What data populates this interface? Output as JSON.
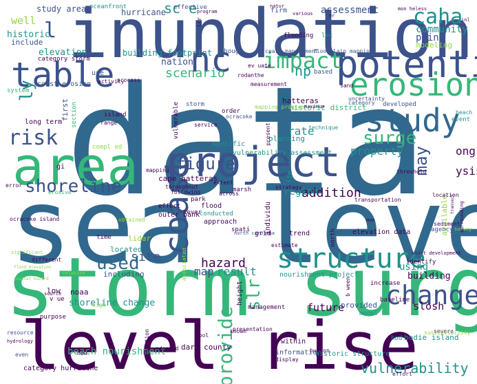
{
  "palette": {
    "purple": "#440154",
    "indigo": "#3b528b",
    "blue": "#31688e",
    "teal": "#21918c",
    "green": "#35b779",
    "lime": "#90d743",
    "yellow": "#d5e21a",
    "background": "#ffffff"
  },
  "words": [
    {
      "text": "data",
      "color": "purple"
    },
    {
      "text": "sea level",
      "color": "purple"
    },
    {
      "text": "inundation",
      "color": "purple"
    },
    {
      "text": "storm surge",
      "color": "purple"
    },
    {
      "text": "level rise",
      "color": "purple"
    },
    {
      "text": "area",
      "color": "purple"
    },
    {
      "text": "project",
      "color": "purple"
    },
    {
      "text": "potenti",
      "color": "purple"
    },
    {
      "text": "table",
      "color": "purple"
    },
    {
      "text": "nc",
      "color": "purple"
    },
    {
      "text": "erosion",
      "color": "purple"
    },
    {
      "text": "study",
      "color": "purple"
    },
    {
      "text": "coast",
      "color": "purple"
    },
    {
      "text": "structure",
      "color": "purple"
    },
    {
      "text": "change",
      "color": "purple"
    },
    {
      "text": "impact",
      "color": "purple"
    },
    {
      "text": "caha",
      "color": "purple"
    },
    {
      "text": "risk",
      "color": "purple"
    },
    {
      "text": "surge",
      "color": "purple"
    },
    {
      "text": "shoreline",
      "color": "purple"
    },
    {
      "text": "figure",
      "color": "purple"
    },
    {
      "text": "used",
      "color": "purple"
    },
    {
      "text": "provide",
      "color": "purple"
    },
    {
      "text": "slr",
      "color": "purple"
    },
    {
      "text": "vulnerability",
      "color": "purple"
    },
    {
      "text": "may",
      "color": "purple"
    },
    {
      "text": "ly",
      "color": "purple"
    },
    {
      "text": "l",
      "color": "purple"
    },
    {
      "text": "sc e",
      "color": "purple"
    },
    {
      "text": "np",
      "color": "purple"
    },
    {
      "text": "scenario",
      "color": "purple"
    },
    {
      "text": "site",
      "color": "purple"
    },
    {
      "text": "hazard",
      "color": "purple"
    },
    {
      "text": "map",
      "color": "purple"
    },
    {
      "text": "result",
      "color": "purple"
    },
    {
      "text": "rate",
      "color": "purple"
    },
    {
      "text": "addition",
      "color": "purple"
    },
    {
      "text": "region",
      "color": "purple"
    },
    {
      "text": "property",
      "color": "purple"
    },
    {
      "text": "ong",
      "color": "purple"
    },
    {
      "text": "ysis",
      "color": "purple"
    },
    {
      "text": "assessment",
      "color": "purple"
    },
    {
      "text": "community",
      "color": "purple"
    },
    {
      "text": "point",
      "color": "purple"
    },
    {
      "text": "modeling",
      "color": "purple"
    },
    {
      "text": "nation",
      "color": "purple"
    },
    {
      "text": "building footprint",
      "color": "purple"
    },
    {
      "text": "elevation",
      "color": "purple"
    },
    {
      "text": "well",
      "color": "purple"
    },
    {
      "text": "historic",
      "color": "purple"
    },
    {
      "text": "include",
      "color": "purple"
    },
    {
      "text": "study area",
      "color": "purple"
    },
    {
      "text": "hurricane",
      "color": "purple"
    },
    {
      "text": "firm",
      "color": "purple"
    },
    {
      "text": "oceanfront",
      "color": "purple"
    },
    {
      "text": "effective",
      "color": "purple"
    },
    {
      "text": "category storm",
      "color": "purple"
    },
    {
      "text": "coast management",
      "color": "purple"
    },
    {
      "text": "floodplain mapping",
      "color": "purple"
    },
    {
      "text": "flooding",
      "color": "purple"
    },
    {
      "text": "loc",
      "color": "purple"
    },
    {
      "text": "though",
      "color": "purple"
    },
    {
      "text": "based",
      "color": "purple"
    },
    {
      "text": "coast erosion",
      "color": "purple"
    },
    {
      "text": "use",
      "color": "purple"
    },
    {
      "text": "system",
      "color": "purple"
    },
    {
      "text": "island",
      "color": "purple"
    },
    {
      "text": "long term",
      "color": "purple"
    },
    {
      "text": "first",
      "color": "purple"
    },
    {
      "text": "section",
      "color": "purple"
    },
    {
      "text": "vulnerable",
      "color": "purple"
    },
    {
      "text": "storm",
      "color": "purple"
    },
    {
      "text": "hatteras",
      "color": "purple"
    },
    {
      "text": "historic district",
      "color": "purple"
    },
    {
      "text": "order",
      "color": "purple"
    },
    {
      "text": "ocracoke",
      "color": "purple"
    },
    {
      "text": "category",
      "color": "purple"
    },
    {
      "text": "developed",
      "color": "purple"
    },
    {
      "text": "uncertainty",
      "color": "purple"
    },
    {
      "text": "planning",
      "color": "purple"
    },
    {
      "text": "technique",
      "color": "purple"
    },
    {
      "text": "event",
      "color": "purple"
    },
    {
      "text": "beach",
      "color": "purple"
    },
    {
      "text": "specific",
      "color": "purple"
    },
    {
      "text": "vulnerability assessment",
      "color": "purple"
    },
    {
      "text": "cape hatteras",
      "color": "purple"
    },
    {
      "text": "gi",
      "color": "purple"
    },
    {
      "text": "ffe",
      "color": "purple"
    },
    {
      "text": "across",
      "color": "purple"
    },
    {
      "text": "marsh",
      "color": "purple"
    },
    {
      "text": "ocracoke island",
      "color": "purple"
    },
    {
      "text": "park",
      "color": "purple"
    },
    {
      "text": "flood",
      "color": "purple"
    },
    {
      "text": "outer bank",
      "color": "purple"
    },
    {
      "text": "conducted",
      "color": "purple"
    },
    {
      "text": "approach",
      "color": "purple"
    },
    {
      "text": "available",
      "color": "purple"
    },
    {
      "text": "agency",
      "color": "purple"
    },
    {
      "text": "grid",
      "color": "purple"
    },
    {
      "text": "trend",
      "color": "purple"
    },
    {
      "text": "elevation data",
      "color": "purple"
    },
    {
      "text": "lidar",
      "color": "purple"
    },
    {
      "text": "located",
      "color": "purple"
    },
    {
      "text": "including",
      "color": "purple"
    },
    {
      "text": "using",
      "color": "purple"
    },
    {
      "text": "building",
      "color": "purple"
    },
    {
      "text": "identify",
      "color": "purple"
    },
    {
      "text": "increase",
      "color": "purple"
    },
    {
      "text": "nourishment project",
      "color": "purple"
    },
    {
      "text": "low",
      "color": "purple"
    },
    {
      "text": "noaa",
      "color": "purple"
    },
    {
      "text": "height",
      "color": "purple"
    },
    {
      "text": "shoreline change",
      "color": "purple"
    },
    {
      "text": "future",
      "color": "purple"
    },
    {
      "text": "provided",
      "color": "purple"
    },
    {
      "text": "slosh",
      "color": "purple"
    },
    {
      "text": "purpose",
      "color": "purple"
    },
    {
      "text": "management",
      "color": "purple"
    },
    {
      "text": "model",
      "color": "purple"
    },
    {
      "text": "baseline",
      "color": "purple"
    },
    {
      "text": "b ween",
      "color": "purple"
    },
    {
      "text": "bodie island",
      "color": "purple"
    },
    {
      "text": "hod",
      "color": "purple"
    },
    {
      "text": "dare county",
      "color": "purple"
    },
    {
      "text": "within",
      "color": "purple"
    },
    {
      "text": "beach nourishment",
      "color": "purple"
    },
    {
      "text": "information",
      "color": "purple"
    },
    {
      "text": "historic structure",
      "color": "purple"
    },
    {
      "text": "category hurricane",
      "color": "purple"
    },
    {
      "text": "resource",
      "color": "purple"
    },
    {
      "text": "even",
      "color": "purple"
    },
    {
      "text": "new",
      "color": "purple"
    },
    {
      "text": "tool",
      "color": "purple"
    },
    {
      "text": "severe",
      "color": "purple"
    },
    {
      "text": "susceptibility",
      "color": "purple"
    },
    {
      "text": "presentation",
      "color": "purple"
    },
    {
      "text": "adopted",
      "color": "purple"
    },
    {
      "text": "display",
      "color": "purple"
    },
    {
      "text": "buxton",
      "color": "purple"
    },
    {
      "text": "effort",
      "color": "purple"
    },
    {
      "text": "station",
      "color": "purple"
    },
    {
      "text": "high",
      "color": "purple"
    },
    {
      "text": "north carolina",
      "color": "purple"
    },
    {
      "text": "estimate",
      "color": "purple"
    },
    {
      "text": "north",
      "color": "purple"
    },
    {
      "text": "sever",
      "color": "purple"
    },
    {
      "text": "effect",
      "color": "purple"
    },
    {
      "text": "time",
      "color": "purple"
    },
    {
      "text": "different",
      "color": "purple"
    },
    {
      "text": "significant",
      "color": "purple"
    },
    {
      "text": "transportation",
      "color": "purple"
    },
    {
      "text": "location",
      "color": "purple"
    },
    {
      "text": "sediment",
      "color": "purple"
    },
    {
      "text": "strategy",
      "color": "purple"
    },
    {
      "text": "threshold",
      "color": "purple"
    },
    {
      "text": "individu",
      "color": "purple"
    },
    {
      "text": "coast development",
      "color": "purple"
    },
    {
      "text": "spati",
      "color": "purple"
    },
    {
      "text": "associated",
      "color": "purple"
    },
    {
      "text": "compl ed",
      "color": "purple"
    },
    {
      "text": "range",
      "color": "purple"
    },
    {
      "text": "service",
      "color": "purple"
    },
    {
      "text": "present",
      "color": "purple"
    },
    {
      "text": "mapping program",
      "color": "purple"
    },
    {
      "text": "maximum",
      "color": "purple"
    },
    {
      "text": "sand",
      "color": "purple"
    },
    {
      "text": "measurement",
      "color": "purple"
    },
    {
      "text": "ev uate",
      "color": "purple"
    },
    {
      "text": "rodanthe",
      "color": "purple"
    },
    {
      "text": "process",
      "color": "purple"
    },
    {
      "text": "activity",
      "color": "purple"
    },
    {
      "text": "v ue",
      "color": "purple"
    },
    {
      "text": "obtained",
      "color": "purple"
    },
    {
      "text": "extent",
      "color": "purple"
    },
    {
      "text": "mapping",
      "color": "purple"
    },
    {
      "text": "throughout",
      "color": "purple"
    },
    {
      "text": "following",
      "color": "purple"
    },
    {
      "text": "erosive",
      "color": "purple"
    },
    {
      "text": "error",
      "color": "purple"
    },
    {
      "text": "natur",
      "color": "purple"
    },
    {
      "text": "various",
      "color": "purple"
    },
    {
      "text": "program",
      "color": "purple"
    },
    {
      "text": "mon heless",
      "color": "purple"
    },
    {
      "text": "hydrology",
      "color": "purple"
    },
    {
      "text": "source",
      "color": "purple"
    },
    {
      "text": "relative",
      "color": "purple"
    },
    {
      "text": "known",
      "color": "purple"
    },
    {
      "text": "survey",
      "color": "purple"
    },
    {
      "text": "surrounding",
      "color": "purple"
    },
    {
      "text": "mon",
      "color": "purple"
    },
    {
      "text": "lrr",
      "color": "purple"
    },
    {
      "text": "er",
      "color": "purple"
    },
    {
      "text": "inl",
      "color": "purple"
    },
    {
      "text": "coastal hazard",
      "color": "purple"
    },
    {
      "text": "flood elevation",
      "color": "purple"
    },
    {
      "text": "transect",
      "color": "purple"
    }
  ]
}
